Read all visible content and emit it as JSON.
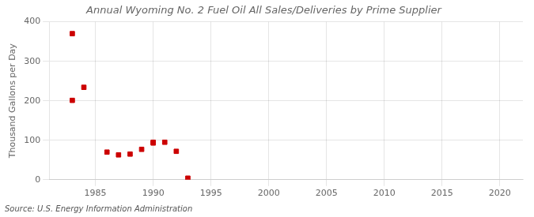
{
  "chart_data": {
    "type": "scatter",
    "title": "Annual Wyoming No. 2 Fuel Oil All Sales/Deliveries by Prime Supplier",
    "ylabel": "Thousand Gallons per Day",
    "source": "Source: U.S. Energy Information Administration",
    "x": [
      1983,
      1983,
      1984,
      1986,
      1987,
      1988,
      1989,
      1990,
      1990,
      1991,
      1992,
      1993
    ],
    "values": [
      370,
      201,
      234,
      70,
      63,
      65,
      77,
      93,
      95,
      95,
      72,
      4
    ],
    "color": "#cc0000",
    "marker": "square",
    "xlim": [
      1981,
      2022
    ],
    "ylim": [
      0,
      400
    ],
    "xticks": [
      1985,
      1990,
      1995,
      2000,
      2005,
      2010,
      2015,
      2020
    ],
    "yticks": [
      0,
      100,
      200,
      300,
      400
    ],
    "grid": true
  }
}
